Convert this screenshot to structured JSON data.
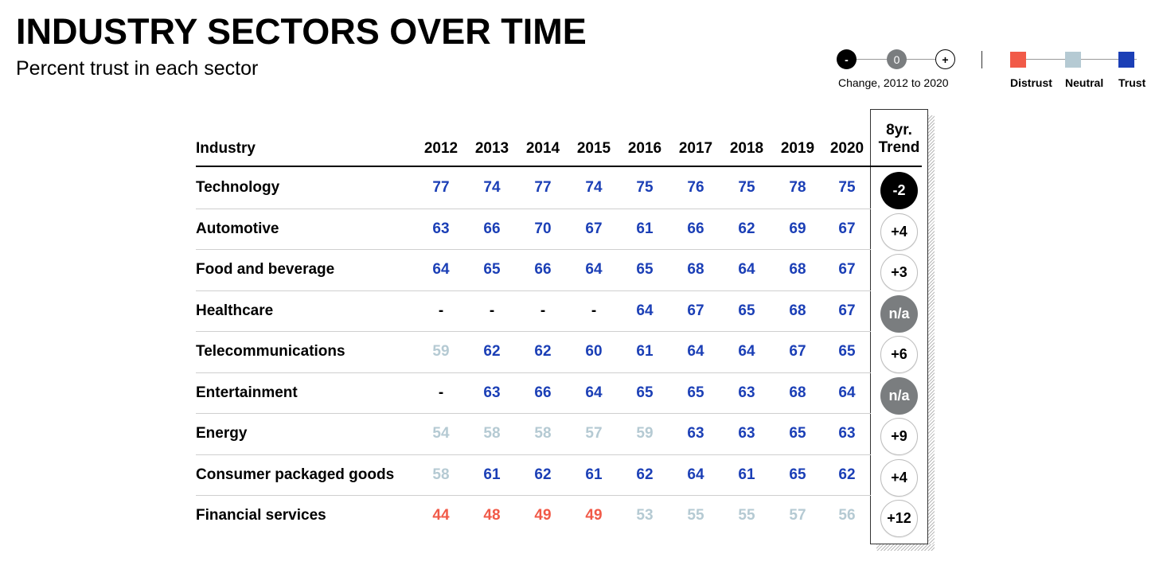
{
  "title": "INDUSTRY SECTORS OVER TIME",
  "subtitle": "Percent trust in each sector",
  "legend": {
    "change": {
      "label": "Change, 2012 to 2020",
      "symbols": [
        "-",
        "0",
        "+"
      ]
    },
    "scale": [
      "Distrust",
      "Neutral",
      "Trust"
    ],
    "colors": {
      "distrust": "#f15a48",
      "neutral": "#b5cad3",
      "trust": "#1b3fb6",
      "negative_change": "#000000",
      "not_available": "#7a7d7f"
    }
  },
  "chart_data": {
    "type": "table",
    "title": "INDUSTRY SECTORS OVER TIME",
    "subtitle": "Percent trust in each sector",
    "row_header": "Industry",
    "years": [
      "2012",
      "2013",
      "2014",
      "2015",
      "2016",
      "2017",
      "2018",
      "2019",
      "2020"
    ],
    "trend_header": [
      "8yr.",
      "Trend"
    ],
    "rows": [
      {
        "industry": "Technology",
        "values": [
          "77",
          "74",
          "77",
          "74",
          "75",
          "76",
          "75",
          "78",
          "75"
        ],
        "levels": [
          "trust",
          "trust",
          "trust",
          "trust",
          "trust",
          "trust",
          "trust",
          "trust",
          "trust"
        ],
        "trend": "-2",
        "trend_type": "neg"
      },
      {
        "industry": "Automotive",
        "values": [
          "63",
          "66",
          "70",
          "67",
          "61",
          "66",
          "62",
          "69",
          "67"
        ],
        "levels": [
          "trust",
          "trust",
          "trust",
          "trust",
          "trust",
          "trust",
          "trust",
          "trust",
          "trust"
        ],
        "trend": "+4",
        "trend_type": "pos"
      },
      {
        "industry": "Food and beverage",
        "values": [
          "64",
          "65",
          "66",
          "64",
          "65",
          "68",
          "64",
          "68",
          "67"
        ],
        "levels": [
          "trust",
          "trust",
          "trust",
          "trust",
          "trust",
          "trust",
          "trust",
          "trust",
          "trust"
        ],
        "trend": "+3",
        "trend_type": "pos"
      },
      {
        "industry": "Healthcare",
        "values": [
          "-",
          "-",
          "-",
          "-",
          "64",
          "67",
          "65",
          "68",
          "67"
        ],
        "levels": [
          "none",
          "none",
          "none",
          "none",
          "trust",
          "trust",
          "trust",
          "trust",
          "trust"
        ],
        "trend": "n/a",
        "trend_type": "na"
      },
      {
        "industry": "Telecommunications",
        "values": [
          "59",
          "62",
          "62",
          "60",
          "61",
          "64",
          "64",
          "67",
          "65"
        ],
        "levels": [
          "neutral",
          "trust",
          "trust",
          "trust",
          "trust",
          "trust",
          "trust",
          "trust",
          "trust"
        ],
        "trend": "+6",
        "trend_type": "pos"
      },
      {
        "industry": "Entertainment",
        "values": [
          "-",
          "63",
          "66",
          "64",
          "65",
          "65",
          "63",
          "68",
          "64"
        ],
        "levels": [
          "none",
          "trust",
          "trust",
          "trust",
          "trust",
          "trust",
          "trust",
          "trust",
          "trust"
        ],
        "trend": "n/a",
        "trend_type": "na"
      },
      {
        "industry": "Energy",
        "values": [
          "54",
          "58",
          "58",
          "57",
          "59",
          "63",
          "63",
          "65",
          "63"
        ],
        "levels": [
          "neutral",
          "neutral",
          "neutral",
          "neutral",
          "neutral",
          "trust",
          "trust",
          "trust",
          "trust"
        ],
        "trend": "+9",
        "trend_type": "pos"
      },
      {
        "industry": "Consumer packaged goods",
        "values": [
          "58",
          "61",
          "62",
          "61",
          "62",
          "64",
          "61",
          "65",
          "62"
        ],
        "levels": [
          "neutral",
          "trust",
          "trust",
          "trust",
          "trust",
          "trust",
          "trust",
          "trust",
          "trust"
        ],
        "trend": "+4",
        "trend_type": "pos"
      },
      {
        "industry": "Financial services",
        "values": [
          "44",
          "48",
          "49",
          "49",
          "53",
          "55",
          "55",
          "57",
          "56"
        ],
        "levels": [
          "distrust",
          "distrust",
          "distrust",
          "distrust",
          "neutral",
          "neutral",
          "neutral",
          "neutral",
          "neutral"
        ],
        "trend": "+12",
        "trend_type": "pos"
      }
    ]
  }
}
